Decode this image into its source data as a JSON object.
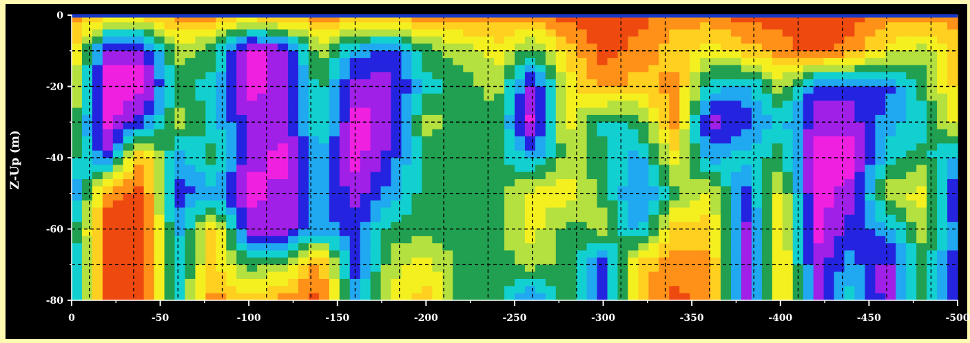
{
  "chart_data": {
    "type": "heatmap",
    "title": "",
    "xlabel": "",
    "ylabel": "Z-Up (m)",
    "x_ticks": [
      0,
      -50,
      -100,
      -150,
      -200,
      -250,
      -300,
      -350,
      -400,
      -450,
      -500
    ],
    "x_tick_labels": [
      "0",
      "-50",
      "-100",
      "-150",
      "-200",
      "-250",
      "-300",
      "-350",
      "-400",
      "-450",
      "-500"
    ],
    "y_ticks": [
      0,
      -20,
      -40,
      -60,
      -80
    ],
    "y_tick_labels": [
      "0",
      "-20",
      "-40",
      "-60",
      "-80"
    ],
    "xlim": [
      0,
      -500
    ],
    "ylim": [
      -80,
      0
    ],
    "grid": true,
    "grid_style": "dashed",
    "surface_line_color": "#1838c8",
    "colorscale": [
      "#cc1010",
      "#ee4a10",
      "#ff9018",
      "#ffd020",
      "#f4f020",
      "#b4e040",
      "#20a050",
      "#12d0d0",
      "#20a8f0",
      "#2424e0",
      "#a020e8",
      "#f020e0"
    ],
    "x": [
      0,
      -20,
      -40,
      -60,
      -80,
      -100,
      -120,
      -140,
      -160,
      -180,
      -200,
      -220,
      -240,
      -260,
      -280,
      -300,
      -320,
      -340,
      -360,
      -380,
      -400,
      -420,
      -440,
      -460,
      -480,
      -500
    ],
    "y": [
      0,
      -10,
      -20,
      -30,
      -40,
      -50,
      -60,
      -70,
      -80
    ],
    "z": [
      [
        2,
        3,
        3,
        2,
        2,
        3,
        2,
        2,
        2,
        2,
        2,
        2,
        2,
        2,
        1,
        1,
        1,
        2,
        2,
        1,
        1,
        1,
        1,
        2,
        2,
        2
      ],
      [
        3,
        10,
        10,
        5,
        6,
        11,
        10,
        5,
        8,
        9,
        6,
        5,
        4,
        6,
        3,
        1,
        2,
        3,
        4,
        3,
        2,
        1,
        2,
        4,
        5,
        3
      ],
      [
        4,
        11,
        11,
        6,
        7,
        11,
        10,
        6,
        10,
        10,
        7,
        6,
        5,
        10,
        4,
        2,
        3,
        2,
        7,
        8,
        5,
        9,
        9,
        9,
        6,
        3
      ],
      [
        5,
        11,
        9,
        5,
        7,
        10,
        10,
        6,
        11,
        10,
        5,
        6,
        6,
        11,
        4,
        7,
        6,
        2,
        10,
        9,
        7,
        10,
        10,
        8,
        7,
        4
      ],
      [
        6,
        9,
        2,
        8,
        6,
        10,
        11,
        8,
        11,
        9,
        6,
        6,
        6,
        8,
        5,
        6,
        8,
        4,
        8,
        7,
        6,
        11,
        11,
        7,
        6,
        8
      ],
      [
        9,
        2,
        1,
        9,
        8,
        11,
        10,
        8,
        10,
        8,
        6,
        6,
        6,
        4,
        4,
        6,
        9,
        6,
        4,
        9,
        4,
        11,
        10,
        5,
        4,
        10
      ],
      [
        7,
        1,
        1,
        8,
        3,
        10,
        10,
        8,
        9,
        6,
        6,
        6,
        6,
        4,
        6,
        5,
        8,
        3,
        3,
        10,
        3,
        11,
        9,
        8,
        5,
        9
      ],
      [
        8,
        1,
        1,
        7,
        3,
        6,
        5,
        2,
        9,
        5,
        4,
        6,
        6,
        5,
        6,
        9,
        3,
        2,
        2,
        10,
        3,
        10,
        8,
        10,
        6,
        9
      ],
      [
        8,
        1,
        1,
        7,
        2,
        3,
        2,
        1,
        8,
        4,
        3,
        6,
        6,
        9,
        6,
        9,
        3,
        1,
        2,
        10,
        3,
        10,
        7,
        10,
        6,
        9
      ]
    ]
  }
}
